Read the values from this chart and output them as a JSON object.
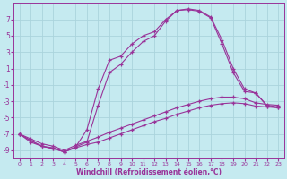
{
  "xlabel": "Windchill (Refroidissement éolien,°C)",
  "bg_color": "#c5eaf0",
  "grid_color": "#aad4dc",
  "line_color": "#993399",
  "spine_color": "#993399",
  "marker": "+",
  "xlim": [
    -0.5,
    23.5
  ],
  "ylim": [
    -10,
    9
  ],
  "xticks": [
    0,
    1,
    2,
    3,
    4,
    5,
    6,
    7,
    8,
    9,
    10,
    11,
    12,
    13,
    14,
    15,
    16,
    17,
    18,
    19,
    20,
    21,
    22,
    23
  ],
  "yticks": [
    -9,
    -7,
    -5,
    -3,
    -1,
    1,
    3,
    5,
    7
  ],
  "series": [
    {
      "x": [
        0,
        1,
        2,
        3,
        4,
        5,
        6,
        7,
        8,
        9,
        10,
        11,
        12,
        13,
        14,
        15,
        16,
        17,
        18,
        19,
        20,
        21,
        22,
        23
      ],
      "y": [
        -7,
        -8.0,
        -8.5,
        -8.7,
        -9.2,
        -8.7,
        -8.3,
        -8.0,
        -7.5,
        -7.0,
        -6.5,
        -6.0,
        -5.5,
        -5.1,
        -4.6,
        -4.2,
        -3.8,
        -3.5,
        -3.3,
        -3.2,
        -3.3,
        -3.6,
        -3.7,
        -3.8
      ]
    },
    {
      "x": [
        0,
        1,
        2,
        3,
        4,
        5,
        6,
        7,
        8,
        9,
        10,
        11,
        12,
        13,
        14,
        15,
        16,
        17,
        18,
        19,
        20,
        21,
        22,
        23
      ],
      "y": [
        -7,
        -7.6,
        -8.2,
        -8.5,
        -9.0,
        -8.4,
        -7.9,
        -7.4,
        -6.8,
        -6.3,
        -5.8,
        -5.3,
        -4.8,
        -4.3,
        -3.8,
        -3.4,
        -3.0,
        -2.7,
        -2.5,
        -2.5,
        -2.7,
        -3.2,
        -3.4,
        -3.5
      ]
    },
    {
      "x": [
        0,
        1,
        2,
        3,
        4,
        5,
        6,
        7,
        8,
        9,
        10,
        11,
        12,
        13,
        14,
        15,
        16,
        17,
        18,
        19,
        20,
        21,
        22,
        23
      ],
      "y": [
        -7,
        -7.8,
        -8.5,
        -8.8,
        -9.2,
        -8.6,
        -8.0,
        -3.5,
        0.5,
        1.5,
        3.0,
        4.3,
        5.0,
        6.8,
        8.1,
        8.2,
        8.0,
        7.2,
        4.0,
        0.5,
        -1.8,
        -2.0,
        -3.6,
        -3.8
      ]
    },
    {
      "x": [
        0,
        1,
        2,
        3,
        4,
        5,
        6,
        7,
        8,
        9,
        10,
        11,
        12,
        13,
        14,
        15,
        16,
        17,
        18,
        19,
        20,
        21,
        22,
        23
      ],
      "y": [
        -7,
        -7.8,
        -8.5,
        -8.8,
        -9.2,
        -8.6,
        -6.5,
        -1.5,
        2.0,
        2.5,
        4.0,
        5.0,
        5.5,
        7.0,
        8.1,
        8.3,
        8.1,
        7.3,
        4.5,
        1.0,
        -1.5,
        -2.0,
        -3.5,
        -3.7
      ]
    }
  ]
}
